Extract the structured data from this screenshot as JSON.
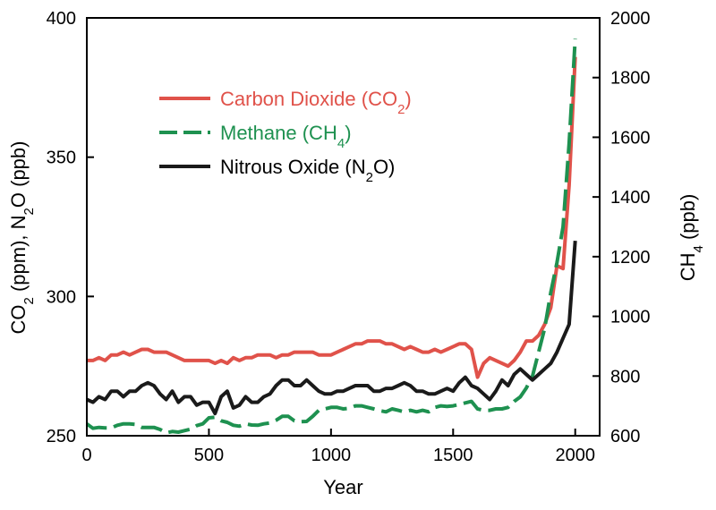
{
  "chart_data": {
    "type": "line",
    "xlabel": "Year",
    "ylabel_left_parts": [
      "CO",
      "2",
      " (ppm), N",
      "2",
      "O (ppb)"
    ],
    "ylabel_right_parts": [
      "CH",
      "4",
      " (ppb)"
    ],
    "xlim": [
      0,
      2100
    ],
    "ylim_left": [
      250,
      400
    ],
    "ylim_right": [
      600,
      2000
    ],
    "x_ticks": [
      0,
      500,
      1000,
      1500,
      2000
    ],
    "x_tick_labels": [
      "0",
      "500",
      "1000",
      "1500",
      "2000"
    ],
    "y_left_ticks": [
      250,
      300,
      350,
      400
    ],
    "y_left_tick_labels": [
      "250",
      "300",
      "350",
      "400"
    ],
    "y_right_ticks": [
      600,
      800,
      1000,
      1200,
      1400,
      1600,
      1800,
      2000
    ],
    "y_right_tick_labels": [
      "600",
      "800",
      "1000",
      "1200",
      "1400",
      "1600",
      "1800",
      "2000"
    ],
    "legend_placement": "upper-left",
    "grid": false,
    "series": [
      {
        "name_parts": [
          "Carbon Dioxide (CO",
          "2",
          ")"
        ],
        "axis": "left",
        "color": "#e0524a",
        "dash": "solid",
        "x": [
          0,
          25,
          50,
          75,
          100,
          125,
          150,
          175,
          200,
          225,
          250,
          275,
          300,
          325,
          350,
          375,
          400,
          425,
          450,
          475,
          500,
          525,
          550,
          575,
          600,
          625,
          650,
          675,
          700,
          725,
          750,
          775,
          800,
          825,
          850,
          875,
          900,
          925,
          950,
          975,
          1000,
          1025,
          1050,
          1075,
          1100,
          1125,
          1150,
          1175,
          1200,
          1225,
          1250,
          1275,
          1300,
          1325,
          1350,
          1375,
          1400,
          1425,
          1450,
          1475,
          1500,
          1525,
          1550,
          1575,
          1600,
          1625,
          1650,
          1675,
          1700,
          1725,
          1750,
          1775,
          1800,
          1825,
          1850,
          1875,
          1900,
          1925,
          1950,
          1975,
          2000
        ],
        "values": [
          277,
          277,
          278,
          277,
          279,
          279,
          280,
          279,
          280,
          281,
          281,
          280,
          280,
          280,
          279,
          278,
          277,
          277,
          277,
          277,
          277,
          276,
          277,
          276,
          278,
          277,
          278,
          278,
          279,
          279,
          279,
          278,
          279,
          279,
          280,
          280,
          280,
          280,
          279,
          279,
          279,
          280,
          281,
          282,
          283,
          283,
          284,
          284,
          284,
          283,
          283,
          282,
          281,
          282,
          281,
          280,
          280,
          281,
          280,
          281,
          282,
          283,
          283,
          281,
          271,
          276,
          278,
          277,
          276,
          275,
          277,
          280,
          284,
          284,
          286,
          290,
          296,
          311,
          310,
          340,
          386
        ]
      },
      {
        "name_parts": [
          "Methane (CH",
          "4",
          ")"
        ],
        "axis": "right",
        "color": "#1e9150",
        "dash": "long-dash",
        "x": [
          0,
          25,
          50,
          75,
          100,
          125,
          150,
          175,
          200,
          225,
          250,
          275,
          300,
          325,
          350,
          375,
          400,
          425,
          450,
          475,
          500,
          525,
          550,
          575,
          600,
          625,
          650,
          675,
          700,
          725,
          750,
          775,
          800,
          825,
          850,
          875,
          900,
          925,
          950,
          975,
          1000,
          1025,
          1050,
          1075,
          1100,
          1125,
          1150,
          1175,
          1200,
          1225,
          1250,
          1275,
          1300,
          1325,
          1350,
          1375,
          1400,
          1425,
          1450,
          1475,
          1500,
          1525,
          1550,
          1575,
          1600,
          1625,
          1650,
          1675,
          1700,
          1725,
          1750,
          1775,
          1800,
          1825,
          1850,
          1875,
          1900,
          1925,
          1950,
          1975,
          2000
        ],
        "values": [
          640,
          625,
          628,
          626,
          626,
          635,
          640,
          640,
          638,
          628,
          628,
          628,
          621,
          610,
          614,
          612,
          617,
          622,
          634,
          640,
          660,
          662,
          650,
          645,
          635,
          632,
          640,
          636,
          635,
          640,
          643,
          652,
          665,
          665,
          650,
          647,
          648,
          665,
          685,
          690,
          695,
          695,
          690,
          692,
          700,
          700,
          695,
          690,
          684,
          680,
          690,
          685,
          680,
          685,
          680,
          685,
          680,
          695,
          700,
          698,
          700,
          705,
          710,
          715,
          690,
          685,
          685,
          690,
          690,
          695,
          715,
          730,
          760,
          800,
          880,
          960,
          1080,
          1180,
          1300,
          1580,
          1930
        ]
      },
      {
        "name_parts": [
          "Nitrous Oxide (N",
          "2",
          "O)"
        ],
        "axis": "left",
        "color": "#1a1a1a",
        "dash": "solid",
        "x": [
          0,
          25,
          50,
          75,
          100,
          125,
          150,
          175,
          200,
          225,
          250,
          275,
          300,
          325,
          350,
          375,
          400,
          425,
          450,
          475,
          500,
          525,
          550,
          575,
          600,
          625,
          650,
          675,
          700,
          725,
          750,
          775,
          800,
          825,
          850,
          875,
          900,
          925,
          950,
          975,
          1000,
          1025,
          1050,
          1075,
          1100,
          1125,
          1150,
          1175,
          1200,
          1225,
          1250,
          1275,
          1300,
          1325,
          1350,
          1375,
          1400,
          1425,
          1450,
          1475,
          1500,
          1525,
          1550,
          1575,
          1600,
          1625,
          1650,
          1675,
          1700,
          1725,
          1750,
          1775,
          1800,
          1825,
          1850,
          1875,
          1900,
          1925,
          1950,
          1975,
          2000
        ],
        "values": [
          263,
          262,
          264,
          263,
          266,
          266,
          264,
          266,
          266,
          268,
          269,
          268,
          265,
          263,
          266,
          262,
          264,
          264,
          261,
          262,
          262,
          258,
          264,
          266,
          260,
          261,
          264,
          262,
          262,
          264,
          265,
          268,
          270,
          270,
          268,
          268,
          270,
          268,
          266,
          265,
          265,
          266,
          266,
          267,
          268,
          268,
          268,
          266,
          266,
          267,
          267,
          268,
          269,
          268,
          266,
          266,
          265,
          265,
          266,
          267,
          266,
          269,
          271,
          268,
          267,
          265,
          263,
          266,
          270,
          268,
          272,
          274,
          272,
          270,
          272,
          274,
          276,
          280,
          285,
          290,
          320
        ]
      }
    ]
  }
}
